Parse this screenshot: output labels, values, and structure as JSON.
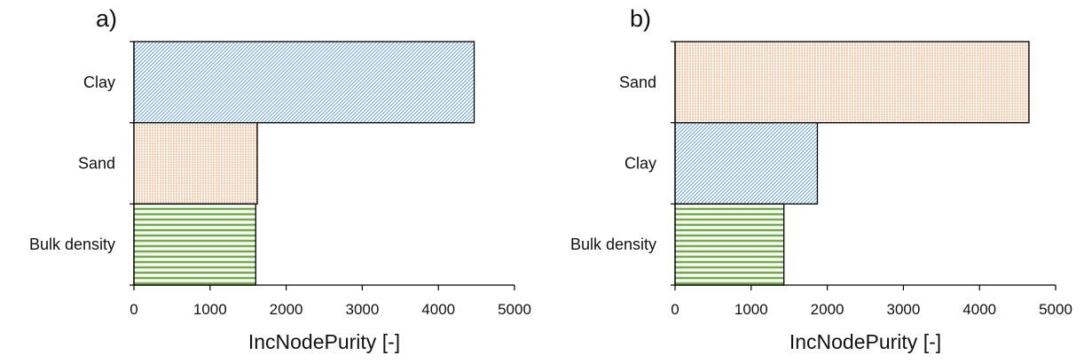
{
  "patterns": {
    "Clay": {
      "style": "diagonal",
      "color": "#5b9bd5"
    },
    "Sand": {
      "style": "vertical",
      "color": "#ed7d31"
    },
    "Bulk density": {
      "style": "horizontal",
      "color": "#70ad47"
    }
  },
  "chart_data": [
    {
      "type": "bar",
      "orientation": "horizontal",
      "panel_label": "a)",
      "categories": [
        "Clay",
        "Sand",
        "Bulk density"
      ],
      "values": [
        4470,
        1620,
        1600
      ],
      "xlabel": "IncNodePurity [-]",
      "xlim": [
        0,
        5000
      ],
      "xticks": [
        0,
        1000,
        2000,
        3000,
        4000,
        5000
      ],
      "grid": false
    },
    {
      "type": "bar",
      "orientation": "horizontal",
      "panel_label": "b)",
      "categories": [
        "Sand",
        "Clay",
        "Bulk density"
      ],
      "values": [
        4650,
        1870,
        1430
      ],
      "xlabel": "IncNodePurity [-]",
      "xlim": [
        0,
        5000
      ],
      "xticks": [
        0,
        1000,
        2000,
        3000,
        4000,
        5000
      ],
      "grid": false
    }
  ]
}
